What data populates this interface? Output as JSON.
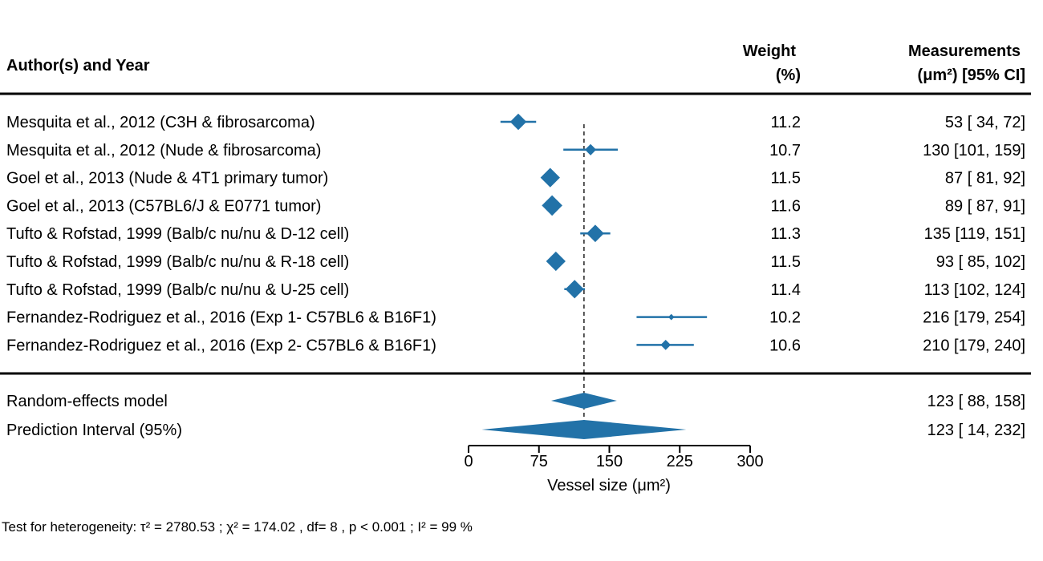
{
  "chart_data": {
    "type": "forest",
    "headers": {
      "study": "Author(s) and Year",
      "weight_line1": "Weight",
      "weight_line2": "(%)",
      "measure_line1": "Measurements",
      "measure_line2": "(μm²) [95% CI]"
    },
    "studies": [
      {
        "label": "Mesquita et al., 2012 (C3H & fibrosarcoma)",
        "estimate": 53,
        "lower": 34,
        "upper": 72,
        "weight": "11.2",
        "ci_text": "53 [ 34,  72]"
      },
      {
        "label": "Mesquita et al., 2012 (Nude & fibrosarcoma)",
        "estimate": 130,
        "lower": 101,
        "upper": 159,
        "weight": "10.7",
        "ci_text": "130 [101, 159]"
      },
      {
        "label": "Goel et al., 2013 (Nude & 4T1 primary tumor)",
        "estimate": 87,
        "lower": 81,
        "upper": 92,
        "weight": "11.5",
        "ci_text": "87 [ 81,  92]"
      },
      {
        "label": "Goel et al., 2013 (C57BL6/J & E0771 tumor)",
        "estimate": 89,
        "lower": 87,
        "upper": 91,
        "weight": "11.6",
        "ci_text": "89 [ 87,  91]"
      },
      {
        "label": "Tufto & Rofstad, 1999 (Balb/c nu/nu & D-12 cell)",
        "estimate": 135,
        "lower": 119,
        "upper": 151,
        "weight": "11.3",
        "ci_text": "135 [119, 151]"
      },
      {
        "label": "Tufto & Rofstad, 1999 (Balb/c nu/nu & R-18 cell)",
        "estimate": 93,
        "lower": 85,
        "upper": 102,
        "weight": "11.5",
        "ci_text": "93 [ 85, 102]"
      },
      {
        "label": "Tufto & Rofstad, 1999 (Balb/c nu/nu & U-25 cell)",
        "estimate": 113,
        "lower": 102,
        "upper": 124,
        "weight": "11.4",
        "ci_text": "113 [102, 124]"
      },
      {
        "label": "Fernandez-Rodriguez et al., 2016 (Exp 1- C57BL6 & B16F1)",
        "estimate": 216,
        "lower": 179,
        "upper": 254,
        "weight": "10.2",
        "ci_text": "216 [179, 254]"
      },
      {
        "label": "Fernandez-Rodriguez et al., 2016 (Exp 2- C57BL6 & B16F1)",
        "estimate": 210,
        "lower": 179,
        "upper": 240,
        "weight": "10.6",
        "ci_text": "210 [179, 240]"
      }
    ],
    "pooled": [
      {
        "label": "Random-effects model",
        "estimate": 123,
        "lower": 88,
        "upper": 158,
        "ci_text": "123 [ 88, 158]"
      },
      {
        "label": "Prediction Interval (95%)",
        "estimate": 123,
        "lower": 14,
        "upper": 232,
        "ci_text": "123 [ 14, 232]"
      }
    ],
    "reference_line": 123,
    "x_axis": {
      "label": "Vessel size (μm²)",
      "ticks": [
        0,
        75,
        150,
        225,
        300
      ],
      "range": [
        0,
        300
      ]
    },
    "heterogeneity": "Test for heterogeneity:  τ² = 2780.53 ;  χ² = 174.02 , df= 8 ,  p < 0.001 ;  I² = 99 %",
    "colors": {
      "marker": "#2272a8",
      "text": "#000000"
    }
  }
}
